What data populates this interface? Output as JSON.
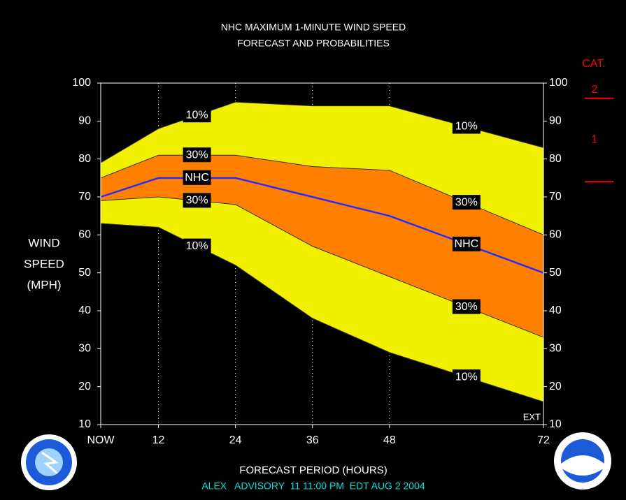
{
  "chart_data": {
    "type": "band-line",
    "title": [
      "NHC MAXIMUM 1-MINUTE WIND SPEED",
      "FORECAST AND PROBABILITIES"
    ],
    "y_label": [
      "WIND",
      "SPEED",
      "(MPH)"
    ],
    "x_label": "FORECAST PERIOD (HOURS)",
    "footer": "ALEX   ADVISORY  11 11:00 PM  EDT AUG 2 2004",
    "corner_note": "EXT",
    "x": [
      3,
      12,
      24,
      36,
      48,
      72
    ],
    "xlim": [
      3,
      72
    ],
    "xticks": [
      {
        "value": 3,
        "label": "NOW"
      },
      12,
      24,
      36,
      48,
      72
    ],
    "ylim": [
      10,
      100
    ],
    "yticks": [
      10,
      20,
      30,
      40,
      50,
      60,
      70,
      80,
      90,
      100
    ],
    "grid": true,
    "series": [
      {
        "name": "10%",
        "color": "#303030",
        "fill": "#f0f000",
        "values": [
          79,
          88,
          95,
          94,
          94,
          83
        ]
      },
      {
        "name": "30%",
        "color": "#303030",
        "fill": "#ff8000",
        "values": [
          75,
          81,
          81,
          78,
          77,
          60
        ]
      },
      {
        "name": "NHC",
        "color": "#2a2aff",
        "values": [
          70,
          75,
          75,
          70,
          65,
          50
        ]
      },
      {
        "name": "30%",
        "color": "#303030",
        "values": [
          69,
          70,
          68,
          57,
          49,
          33
        ]
      },
      {
        "name": "10%",
        "color": "#303030",
        "values": [
          63,
          62,
          52,
          38,
          29,
          16
        ]
      }
    ],
    "category_scale": {
      "title": "CAT.",
      "labels": [
        "1",
        "2"
      ],
      "thresholds": [
        74,
        96
      ],
      "color": "#ff0000"
    }
  }
}
